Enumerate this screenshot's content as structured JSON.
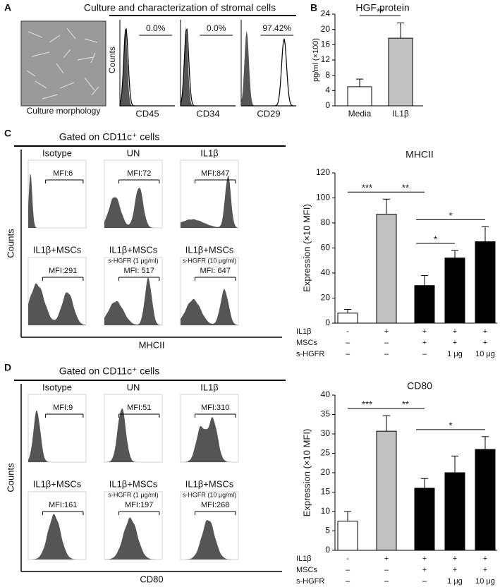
{
  "panel_labels": [
    "A",
    "B",
    "C",
    "D"
  ],
  "panel_a": {
    "title": "Culture and characterization of stromal cells",
    "image_caption": "Culture morphology",
    "y_label": "Counts",
    "histograms": [
      {
        "marker": "CD45",
        "percent": "0.0%"
      },
      {
        "marker": "CD34",
        "percent": "0.0%"
      },
      {
        "marker": "CD29",
        "percent": "97.42%"
      }
    ]
  },
  "panel_c": {
    "title": "Gated on CD11c⁺ cells",
    "y_label": "Counts",
    "x_label": "MHCII",
    "histograms": [
      {
        "label": "Isotype",
        "mfi": "MFI:6"
      },
      {
        "label": "UN",
        "mfi": "MFI:72"
      },
      {
        "label": "IL1β",
        "mfi": "MFI:847"
      },
      {
        "label": "IL1β+MSCs",
        "mfi": "MFI:291"
      },
      {
        "label": "IL1β+MSCs",
        "sublabel": "s-HGFR (1 μg/ml)",
        "mfi": "MFI: 517"
      },
      {
        "label": "IL1β+MSCs",
        "sublabel": "s-HGFR (10 μg/ml)",
        "mfi": "MFI: 647"
      }
    ]
  },
  "panel_d": {
    "title": "Gated on CD11c⁺ cells",
    "y_label": "Counts",
    "x_label": "CD80",
    "histograms": [
      {
        "label": "Isotype",
        "mfi": "MFI:9"
      },
      {
        "label": "UN",
        "mfi": "MFI:51"
      },
      {
        "label": "IL1β",
        "mfi": "MFI:310"
      },
      {
        "label": "IL1β+MSCs",
        "mfi": "MFI:161"
      },
      {
        "label": "IL1β+MSCs",
        "sublabel": "s-HGFR (1 μg/ml)",
        "mfi": "MFI:197"
      },
      {
        "label": "IL1β+MSCs",
        "sublabel": "s-HGFR (10 μg/ml)",
        "mfi": "MFI:268"
      }
    ]
  },
  "chart_data": [
    {
      "type": "bar",
      "title": "HGF protein",
      "y_label": "pg/ml (×100)",
      "categories": [
        "Media",
        "IL1β"
      ],
      "values": [
        5,
        17.7
      ],
      "errors": [
        2,
        4
      ],
      "colors": [
        "#ffffff",
        "#c0c0c0"
      ],
      "ylim": [
        0,
        24
      ],
      "yticks": [
        0,
        4,
        8,
        12,
        16,
        20,
        24
      ],
      "significance": [
        {
          "from": 0,
          "to": 1,
          "label": "**"
        }
      ]
    },
    {
      "type": "bar",
      "title": "MHCII",
      "y_label": "Expression (×10 MFI)",
      "condition_rows": [
        {
          "name": "IL1β",
          "marks": [
            "-",
            "+",
            "+",
            "+",
            "+"
          ]
        },
        {
          "name": "MSCs",
          "marks": [
            "–",
            "–",
            "+",
            "+",
            "+"
          ]
        },
        {
          "name": "s-HGFR",
          "marks": [
            "–",
            "–",
            "–",
            "1 μg",
            "10 μg"
          ]
        }
      ],
      "values": [
        8,
        87,
        30,
        52,
        65
      ],
      "errors": [
        3,
        12,
        8,
        6,
        12
      ],
      "colors": [
        "#ffffff",
        "#c0c0c0",
        "#000000",
        "#000000",
        "#000000"
      ],
      "ylim": [
        0,
        120
      ],
      "yticks": [
        0,
        20,
        40,
        60,
        80,
        100,
        120
      ],
      "significance": [
        {
          "from": 0,
          "to": 1,
          "label": "***"
        },
        {
          "from": 1,
          "to": 2,
          "label": "**"
        },
        {
          "from": 2,
          "to": 3,
          "label": "*"
        },
        {
          "from": 2,
          "to": 4,
          "label": "*"
        }
      ]
    },
    {
      "type": "bar",
      "title": "CD80",
      "y_label": "Expression (×10 MFI)",
      "condition_rows": [
        {
          "name": "IL1β",
          "marks": [
            "-",
            "+",
            "+",
            "+",
            "+"
          ]
        },
        {
          "name": "MSCs",
          "marks": [
            "–",
            "–",
            "+",
            "+",
            "+"
          ]
        },
        {
          "name": "s-HGFR",
          "marks": [
            "–",
            "–",
            "–",
            "1 μg",
            "10 μg"
          ]
        }
      ],
      "values": [
        7.5,
        30.7,
        16,
        20,
        26
      ],
      "errors": [
        2.5,
        4,
        2.5,
        4.3,
        3.3
      ],
      "colors": [
        "#ffffff",
        "#c0c0c0",
        "#000000",
        "#000000",
        "#000000"
      ],
      "ylim": [
        0,
        40
      ],
      "yticks": [
        0,
        5,
        10,
        15,
        20,
        25,
        30,
        35,
        40
      ],
      "significance": [
        {
          "from": 0,
          "to": 1,
          "label": "***"
        },
        {
          "from": 1,
          "to": 2,
          "label": "**"
        },
        {
          "from": 2,
          "to": 4,
          "label": "*"
        }
      ]
    }
  ]
}
